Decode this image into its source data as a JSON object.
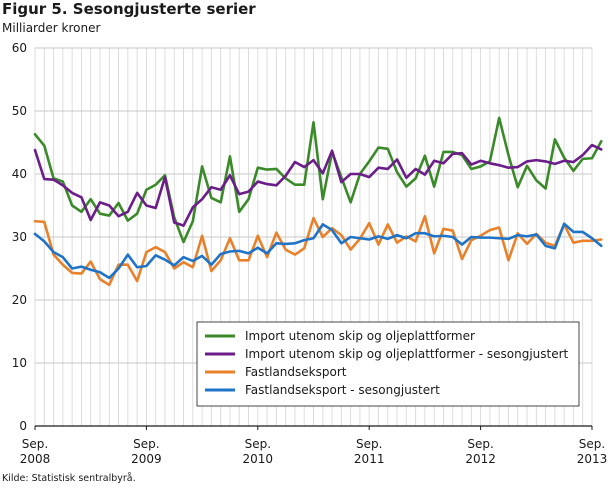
{
  "page": {
    "title": "Figur 5. Sesongjusterte serier",
    "unit_label": "Milliarder kroner",
    "source": "Kilde: Statistisk sentralbyrå."
  },
  "chart_data": {
    "type": "line",
    "title": "Figur 5. Sesongjusterte serier",
    "ylabel": "Milliarder kroner",
    "xlabel": "",
    "ylim": [
      0,
      60
    ],
    "yticks": [
      0,
      10,
      20,
      30,
      40,
      50,
      60
    ],
    "grid": true,
    "legend_position": "bottom-right",
    "x_start": "2008-09",
    "x_end": "2013-09",
    "xtick_labels": [
      {
        "month": "Sep.",
        "year": "2008",
        "date": "2008-09"
      },
      {
        "month": "Sep.",
        "year": "2009",
        "date": "2009-09"
      },
      {
        "month": "Sep.",
        "year": "2010",
        "date": "2010-09"
      },
      {
        "month": "Sep.",
        "year": "2011",
        "date": "2011-09"
      },
      {
        "month": "Sep.",
        "year": "2012",
        "date": "2012-09"
      },
      {
        "month": "Sep.",
        "year": "2013",
        "date": "2013-09"
      }
    ],
    "series": [
      {
        "name": "Import utenom skip og oljeplattformer",
        "color": "#3a8a2a",
        "values": [
          46.3,
          44.5,
          39.3,
          38.8,
          35.0,
          34.0,
          36.0,
          33.7,
          33.4,
          35.4,
          32.6,
          33.7,
          37.5,
          38.3,
          39.8,
          33.1,
          29.2,
          32.5,
          41.2,
          36.2,
          35.5,
          42.8,
          34.0,
          36.0,
          41.0,
          40.7,
          40.8,
          39.3,
          38.3,
          38.3,
          48.2,
          36.0,
          43.5,
          39.5,
          35.5,
          40.0,
          42.0,
          44.2,
          44.0,
          40.3,
          38.0,
          39.3,
          42.9,
          38.0,
          43.5,
          43.5,
          43.0,
          40.8,
          41.2,
          42.0,
          48.9,
          43.0,
          37.9,
          41.3,
          39.0,
          37.7,
          45.5,
          42.6,
          40.5,
          42.4,
          42.5,
          45.2
        ]
      },
      {
        "name": "Import utenom skip og oljeplattformer - sesongjustert",
        "color": "#6b1e8a",
        "values": [
          43.8,
          39.2,
          39.1,
          38.2,
          37.0,
          36.3,
          32.7,
          35.5,
          35.0,
          33.3,
          34.0,
          37.0,
          35.0,
          34.6,
          39.5,
          32.3,
          31.8,
          34.7,
          36.0,
          37.9,
          37.5,
          39.8,
          36.8,
          37.2,
          38.8,
          38.4,
          38.2,
          39.7,
          41.9,
          41.1,
          42.2,
          40.1,
          43.7,
          38.7,
          40.0,
          40.0,
          39.5,
          41.0,
          40.8,
          42.3,
          39.4,
          40.8,
          39.9,
          42.1,
          41.7,
          43.2,
          43.3,
          41.5,
          42.1,
          41.7,
          41.4,
          41.0,
          41.1,
          42.0,
          42.2,
          42.0,
          41.6,
          42.1,
          41.9,
          43.0,
          44.6,
          43.9
        ]
      },
      {
        "name": "Fastlandseksport",
        "color": "#e8812a",
        "values": [
          32.5,
          32.4,
          27.2,
          25.6,
          24.3,
          24.2,
          26.1,
          23.3,
          22.4,
          25.6,
          25.6,
          23.0,
          27.6,
          28.4,
          27.6,
          25.0,
          26.0,
          25.2,
          30.2,
          24.6,
          26.3,
          29.8,
          26.3,
          26.3,
          30.2,
          26.8,
          30.7,
          28.0,
          27.2,
          28.2,
          33.0,
          30.0,
          31.4,
          30.3,
          28.0,
          29.7,
          32.2,
          28.8,
          32.0,
          29.1,
          30.1,
          29.3,
          33.3,
          27.4,
          31.3,
          31.0,
          26.5,
          29.5,
          30.2,
          31.1,
          31.5,
          26.3,
          30.6,
          28.9,
          30.5,
          29.1,
          28.6,
          32.0,
          29.1,
          29.4,
          29.4,
          29.6
        ]
      },
      {
        "name": "Fastlandseksport - sesongjustert",
        "color": "#1f74c8",
        "values": [
          30.5,
          29.3,
          27.6,
          26.8,
          25.0,
          25.3,
          24.8,
          24.4,
          23.5,
          25.0,
          27.2,
          25.2,
          25.4,
          27.1,
          26.4,
          25.5,
          26.8,
          26.2,
          27.0,
          25.6,
          27.3,
          27.7,
          27.8,
          27.4,
          28.3,
          27.4,
          29.0,
          28.9,
          29.0,
          29.5,
          29.8,
          32.0,
          31.1,
          29.0,
          30.0,
          29.8,
          29.6,
          30.1,
          29.7,
          30.3,
          29.8,
          30.6,
          30.6,
          30.1,
          30.2,
          30.0,
          28.8,
          30.0,
          29.9,
          29.9,
          29.8,
          29.7,
          30.3,
          30.1,
          30.4,
          28.6,
          28.2,
          32.1,
          30.8,
          30.8,
          29.8,
          28.6
        ]
      }
    ]
  }
}
